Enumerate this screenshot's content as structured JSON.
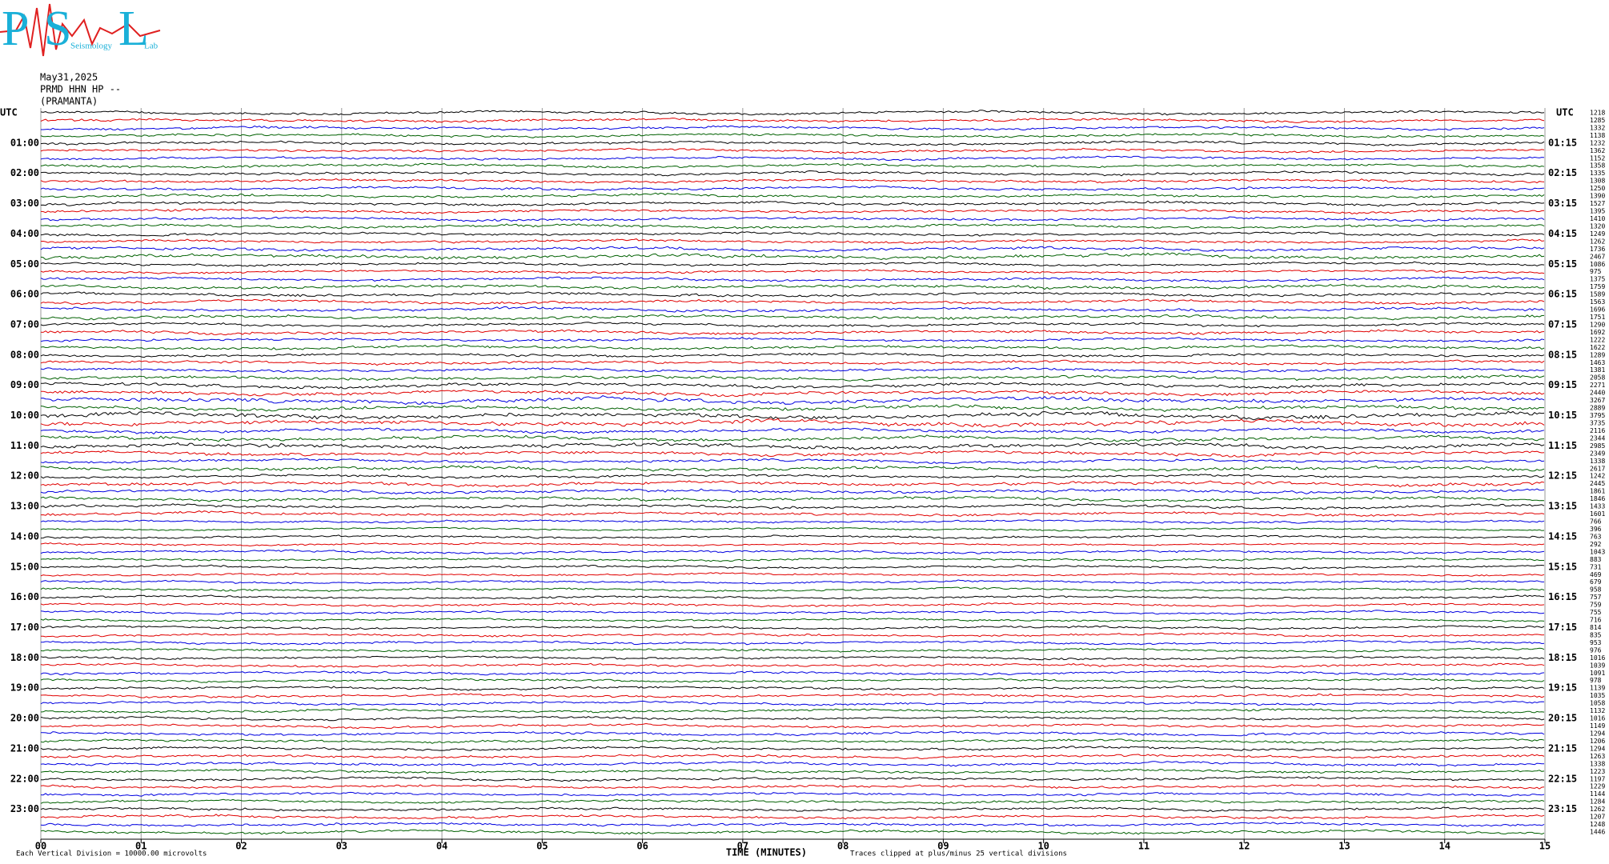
{
  "logo": {
    "letters": [
      "P",
      "S",
      "L"
    ],
    "words": [
      "Seismology",
      "Lab"
    ]
  },
  "header": {
    "date": "May31,2025",
    "station": "PRMD HHN HP --",
    "location": "(PRAMANTA)"
  },
  "utc_label": "UTC",
  "left_labels": [
    "01:00",
    "02:00",
    "03:00",
    "04:00",
    "05:00",
    "06:00",
    "07:00",
    "08:00",
    "09:00",
    "10:00",
    "11:00",
    "12:00",
    "13:00",
    "14:00",
    "15:00",
    "16:00",
    "17:00",
    "18:00",
    "19:00",
    "20:00",
    "21:00",
    "22:00",
    "23:00"
  ],
  "right_labels": [
    "01:15",
    "02:15",
    "03:15",
    "04:15",
    "05:15",
    "06:15",
    "07:15",
    "08:15",
    "09:15",
    "10:15",
    "11:15",
    "12:15",
    "13:15",
    "14:15",
    "15:15",
    "16:15",
    "17:15",
    "18:15",
    "19:15",
    "20:15",
    "21:15",
    "22:15",
    "23:15"
  ],
  "row_values": [
    1218,
    1285,
    1332,
    1138,
    1232,
    1362,
    1152,
    1358,
    1335,
    1308,
    1250,
    1390,
    1527,
    1395,
    1410,
    1320,
    1249,
    1262,
    1736,
    2467,
    1086,
    975,
    1375,
    1759,
    1589,
    1563,
    1696,
    1751,
    1290,
    1692,
    1222,
    1622,
    1289,
    1463,
    1381,
    2058,
    2271,
    2440,
    3267,
    2889,
    3795,
    3735,
    2116,
    2344,
    2985,
    2349,
    1338,
    2617,
    1242,
    2445,
    1861,
    1846,
    1433,
    1601,
    766,
    396,
    763,
    292,
    1043,
    883,
    731,
    469,
    679,
    958,
    757,
    759,
    755,
    716,
    814,
    835,
    953,
    976,
    1016,
    1039,
    1091,
    978,
    1139,
    1035,
    1058,
    1132,
    1016,
    1149,
    1294,
    1206,
    1294,
    1263,
    1338,
    1223,
    1197,
    1229,
    1144,
    1284,
    1262,
    1207,
    1248,
    1446
  ],
  "x_axis": {
    "ticks": [
      "00",
      "01",
      "02",
      "03",
      "04",
      "05",
      "06",
      "07",
      "08",
      "09",
      "10",
      "11",
      "12",
      "13",
      "14",
      "15"
    ],
    "title": "TIME (MINUTES)"
  },
  "footer": {
    "scale": "Each Vertical Division = 10000.00 microvolts",
    "clip": "Traces clipped at plus/minus 25 vertical divisions"
  }
}
